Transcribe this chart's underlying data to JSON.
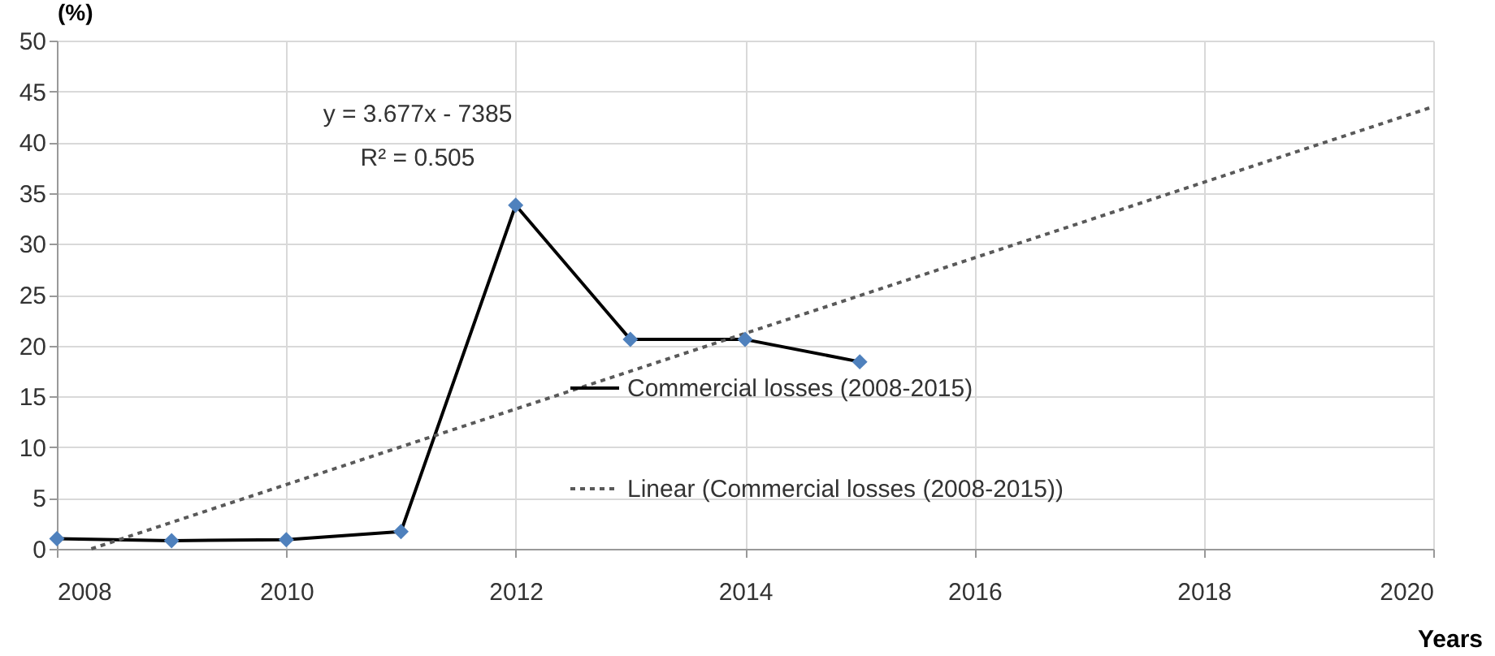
{
  "chart_data": {
    "type": "line",
    "ylabel": "(%)",
    "xlabel": "Years",
    "x": [
      2008,
      2009,
      2010,
      2011,
      2012,
      2013,
      2014,
      2015
    ],
    "series": [
      {
        "name": "Commercial losses (2008-2015)",
        "color": "#000000",
        "values": [
          1.0,
          0.8,
          0.9,
          1.7,
          33.8,
          20.6,
          20.6,
          18.4
        ],
        "marker": "diamond",
        "line_style": "solid"
      },
      {
        "name": "Linear (Commercial losses (2008-2015))",
        "type": "line",
        "color": "#595959",
        "x": [
          2008.3,
          2020
        ],
        "values": [
          0,
          43.5
        ],
        "marker": "none",
        "line_style": "dotted"
      }
    ],
    "annotations": [
      "y = 3.677x - 7385",
      "R² = 0.505"
    ],
    "xlim": [
      2008,
      2020
    ],
    "xticks": [
      2008,
      2010,
      2012,
      2014,
      2016,
      2018,
      2020
    ],
    "ylim": [
      0,
      50
    ],
    "yticks": [
      0,
      5,
      10,
      15,
      20,
      25,
      30,
      35,
      40,
      45,
      50
    ],
    "grid": true,
    "legend": "bottom right"
  }
}
